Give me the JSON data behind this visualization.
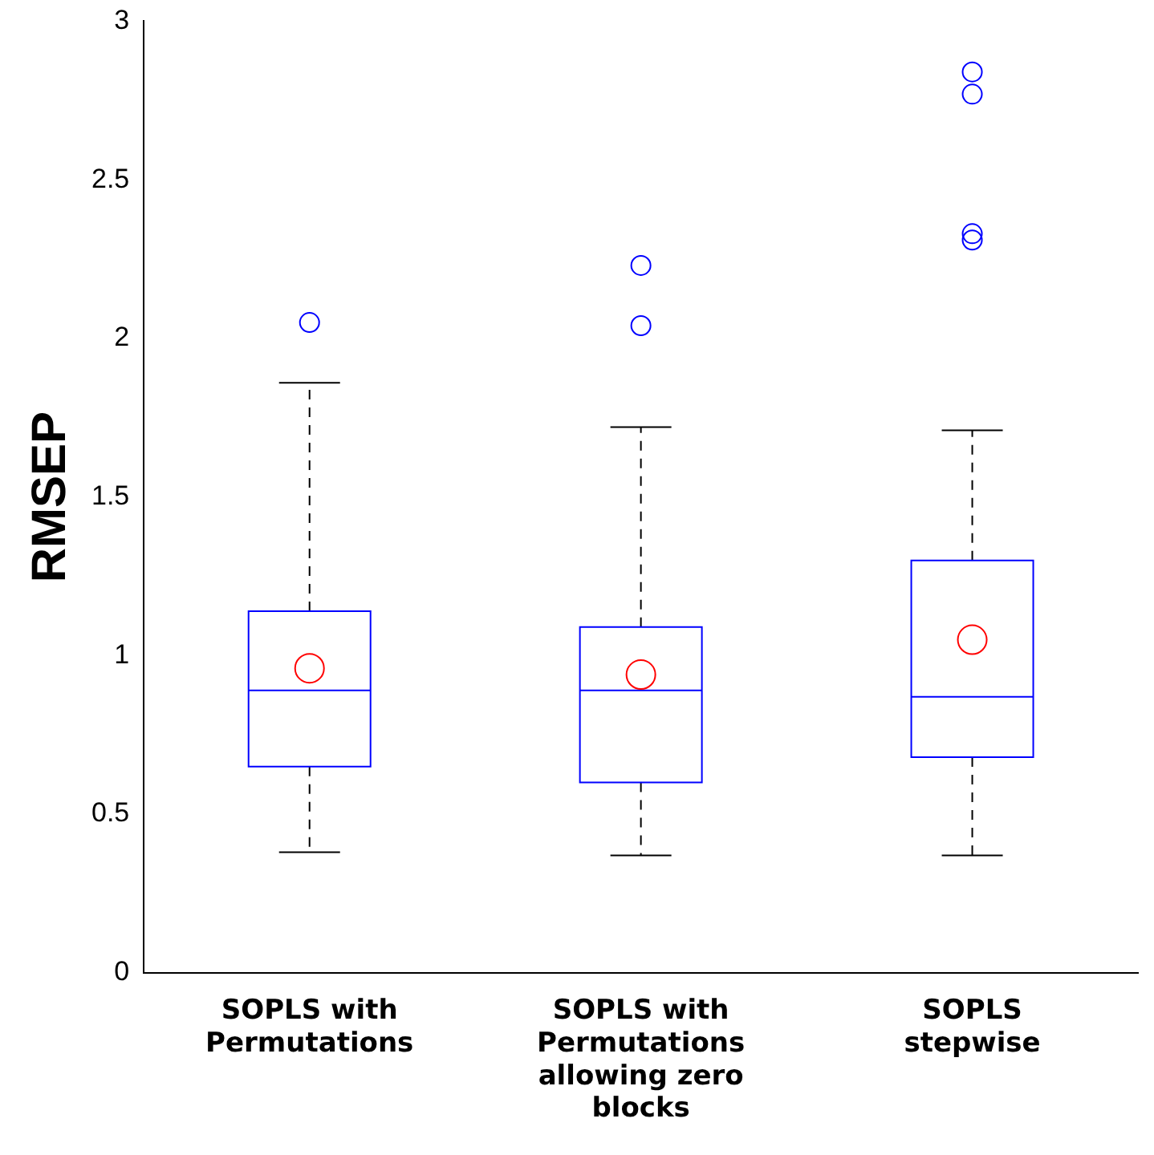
{
  "chart_data": {
    "type": "box",
    "ylabel": "RMSEP",
    "categories": [
      "SOPLS with\nPermutations",
      "SOPLS with\nPermutations\nallowing zero\nblocks",
      "SOPLS\nstepwise"
    ],
    "ylim": [
      0,
      3
    ],
    "yticks": [
      0,
      0.5,
      1,
      1.5,
      2,
      2.5,
      3
    ],
    "grid": false,
    "legend": false,
    "series": [
      {
        "color": "#0000ff",
        "boxes": [
          {
            "low": 0.38,
            "q1": 0.65,
            "median": 0.89,
            "q3": 1.14,
            "high": 1.86,
            "mean": 0.96,
            "outliers": [
              2.05
            ]
          },
          {
            "low": 0.37,
            "q1": 0.6,
            "median": 0.89,
            "q3": 1.09,
            "high": 1.72,
            "mean": 0.94,
            "outliers": [
              2.04,
              2.23
            ]
          },
          {
            "low": 0.37,
            "q1": 0.68,
            "median": 0.87,
            "q3": 1.3,
            "high": 1.71,
            "mean": 1.05,
            "outliers": [
              2.31,
              2.33,
              2.77,
              2.84
            ]
          }
        ]
      }
    ]
  }
}
